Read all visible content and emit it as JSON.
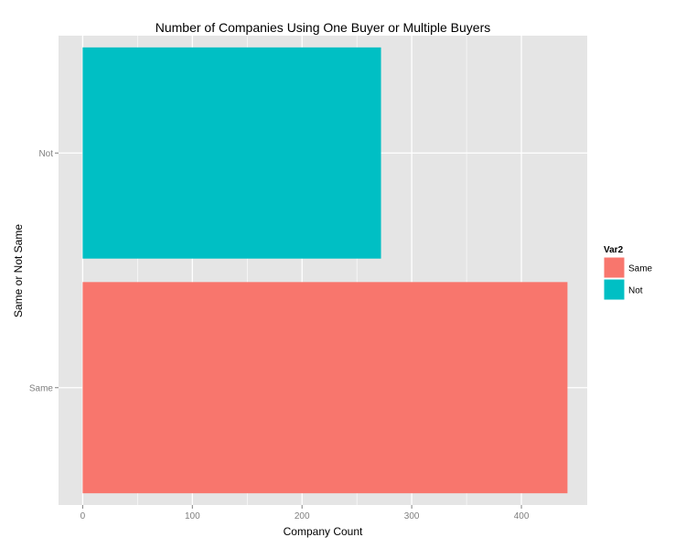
{
  "chart_data": {
    "type": "bar",
    "orientation": "horizontal",
    "title": "Number of Companies Using One Buyer or Multiple Buyers",
    "xlabel": "Company Count",
    "ylabel": "Same or Not Same",
    "categories": [
      "Same",
      "Not"
    ],
    "values": [
      442,
      272
    ],
    "colors": [
      "#F8766D",
      "#00BFC4"
    ],
    "xlim": [
      -22,
      460
    ],
    "x_ticks": [
      0,
      100,
      200,
      300,
      400
    ],
    "grid": true,
    "panel_background": "#E5E5E5",
    "grid_color": "#FFFFFF",
    "legend": {
      "title": "Var2",
      "position": "right",
      "entries": [
        {
          "label": "Same",
          "color": "#F8766D"
        },
        {
          "label": "Not",
          "color": "#00BFC4"
        }
      ]
    }
  }
}
